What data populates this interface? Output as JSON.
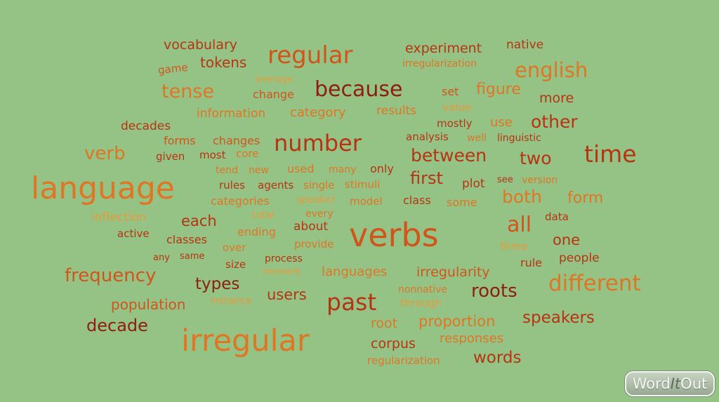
{
  "words": [
    {
      "text": "vocabulary",
      "color": "#b83312"
    },
    {
      "text": "regular",
      "color": "#d2541a"
    },
    {
      "text": "experiment",
      "color": "#b83312"
    },
    {
      "text": "native",
      "color": "#b83312"
    },
    {
      "text": "game",
      "color": "#d2541a"
    },
    {
      "text": "tokens",
      "color": "#b83312"
    },
    {
      "text": "irregularization",
      "color": "#e07524"
    },
    {
      "text": "english",
      "color": "#e07524"
    },
    {
      "text": "average",
      "color": "#e89a3a"
    },
    {
      "text": "tense",
      "color": "#e07524"
    },
    {
      "text": "change",
      "color": "#d2541a"
    },
    {
      "text": "because",
      "color": "#8e1d12"
    },
    {
      "text": "set",
      "color": "#d2541a"
    },
    {
      "text": "figure",
      "color": "#e07524"
    },
    {
      "text": "more",
      "color": "#b83312"
    },
    {
      "text": "information",
      "color": "#e07524"
    },
    {
      "text": "category",
      "color": "#e07524"
    },
    {
      "text": "results",
      "color": "#e07524"
    },
    {
      "text": "value",
      "color": "#e89a3a"
    },
    {
      "text": "decades",
      "color": "#b83312"
    },
    {
      "text": "mostly",
      "color": "#b83312"
    },
    {
      "text": "use",
      "color": "#e07524"
    },
    {
      "text": "other",
      "color": "#b83312"
    },
    {
      "text": "forms",
      "color": "#d2541a"
    },
    {
      "text": "changes",
      "color": "#d2541a"
    },
    {
      "text": "number",
      "color": "#b83312"
    },
    {
      "text": "analysis",
      "color": "#b83312"
    },
    {
      "text": "well",
      "color": "#e07524"
    },
    {
      "text": "linguistic",
      "color": "#b83312"
    },
    {
      "text": "verb",
      "color": "#e07524"
    },
    {
      "text": "given",
      "color": "#b83312"
    },
    {
      "text": "most",
      "color": "#b83312"
    },
    {
      "text": "core",
      "color": "#e07524"
    },
    {
      "text": "between",
      "color": "#b83312"
    },
    {
      "text": "two",
      "color": "#b83312"
    },
    {
      "text": "time",
      "color": "#b83312"
    },
    {
      "text": "language",
      "color": "#e07524"
    },
    {
      "text": "tend",
      "color": "#e07524"
    },
    {
      "text": "new",
      "color": "#e07524"
    },
    {
      "text": "used",
      "color": "#e07524"
    },
    {
      "text": "many",
      "color": "#e07524"
    },
    {
      "text": "only",
      "color": "#b83312"
    },
    {
      "text": "first",
      "color": "#b83312"
    },
    {
      "text": "see",
      "color": "#b83312"
    },
    {
      "text": "version",
      "color": "#e07524"
    },
    {
      "text": "rules",
      "color": "#b83312"
    },
    {
      "text": "agents",
      "color": "#b83312"
    },
    {
      "text": "single",
      "color": "#e07524"
    },
    {
      "text": "stimuli",
      "color": "#e07524"
    },
    {
      "text": "plot",
      "color": "#b83312"
    },
    {
      "text": "both",
      "color": "#e07524"
    },
    {
      "text": "form",
      "color": "#e07524"
    },
    {
      "text": "categories",
      "color": "#e07524"
    },
    {
      "text": "speaker",
      "color": "#e89a3a"
    },
    {
      "text": "model",
      "color": "#e07524"
    },
    {
      "text": "class",
      "color": "#b83312"
    },
    {
      "text": "some",
      "color": "#e07524"
    },
    {
      "text": "total",
      "color": "#e89a3a"
    },
    {
      "text": "every",
      "color": "#e07524"
    },
    {
      "text": "data",
      "color": "#b83312"
    },
    {
      "text": "inflection",
      "color": "#e89a3a"
    },
    {
      "text": "each",
      "color": "#b83312"
    },
    {
      "text": "all",
      "color": "#d2541a"
    },
    {
      "text": "ending",
      "color": "#e07524"
    },
    {
      "text": "about",
      "color": "#b83312"
    },
    {
      "text": "verbs",
      "color": "#d2541a"
    },
    {
      "text": "active",
      "color": "#b83312"
    },
    {
      "text": "classes",
      "color": "#b83312"
    },
    {
      "text": "one",
      "color": "#b83312"
    },
    {
      "text": "three",
      "color": "#e89a3a"
    },
    {
      "text": "over",
      "color": "#e07524"
    },
    {
      "text": "provide",
      "color": "#e07524"
    },
    {
      "text": "any",
      "color": "#b83312"
    },
    {
      "text": "same",
      "color": "#b83312"
    },
    {
      "text": "process",
      "color": "#b83312"
    },
    {
      "text": "rule",
      "color": "#b83312"
    },
    {
      "text": "people",
      "color": "#b83312"
    },
    {
      "text": "size",
      "color": "#b83312"
    },
    {
      "text": "nonverb",
      "color": "#e89a3a"
    },
    {
      "text": "languages",
      "color": "#e07524"
    },
    {
      "text": "irregularity",
      "color": "#d2541a"
    },
    {
      "text": "frequency",
      "color": "#d2541a"
    },
    {
      "text": "different",
      "color": "#e07524"
    },
    {
      "text": "types",
      "color": "#8e1d12"
    },
    {
      "text": "nonnative",
      "color": "#e07524"
    },
    {
      "text": "roots",
      "color": "#8e1d12"
    },
    {
      "text": "population",
      "color": "#d2541a"
    },
    {
      "text": "instance",
      "color": "#e89a3a"
    },
    {
      "text": "users",
      "color": "#b83312"
    },
    {
      "text": "past",
      "color": "#b83312"
    },
    {
      "text": "through",
      "color": "#e89a3a"
    },
    {
      "text": "decade",
      "color": "#8e1d12"
    },
    {
      "text": "root",
      "color": "#e07524"
    },
    {
      "text": "proportion",
      "color": "#e07524"
    },
    {
      "text": "speakers",
      "color": "#b83312"
    },
    {
      "text": "irregular",
      "color": "#e07524"
    },
    {
      "text": "corpus",
      "color": "#b83312"
    },
    {
      "text": "responses",
      "color": "#e07524"
    },
    {
      "text": "regularization",
      "color": "#e07524"
    },
    {
      "text": "words",
      "color": "#b83312"
    }
  ],
  "logo": {
    "word": "Word",
    "it": "It",
    "out": "Out"
  }
}
